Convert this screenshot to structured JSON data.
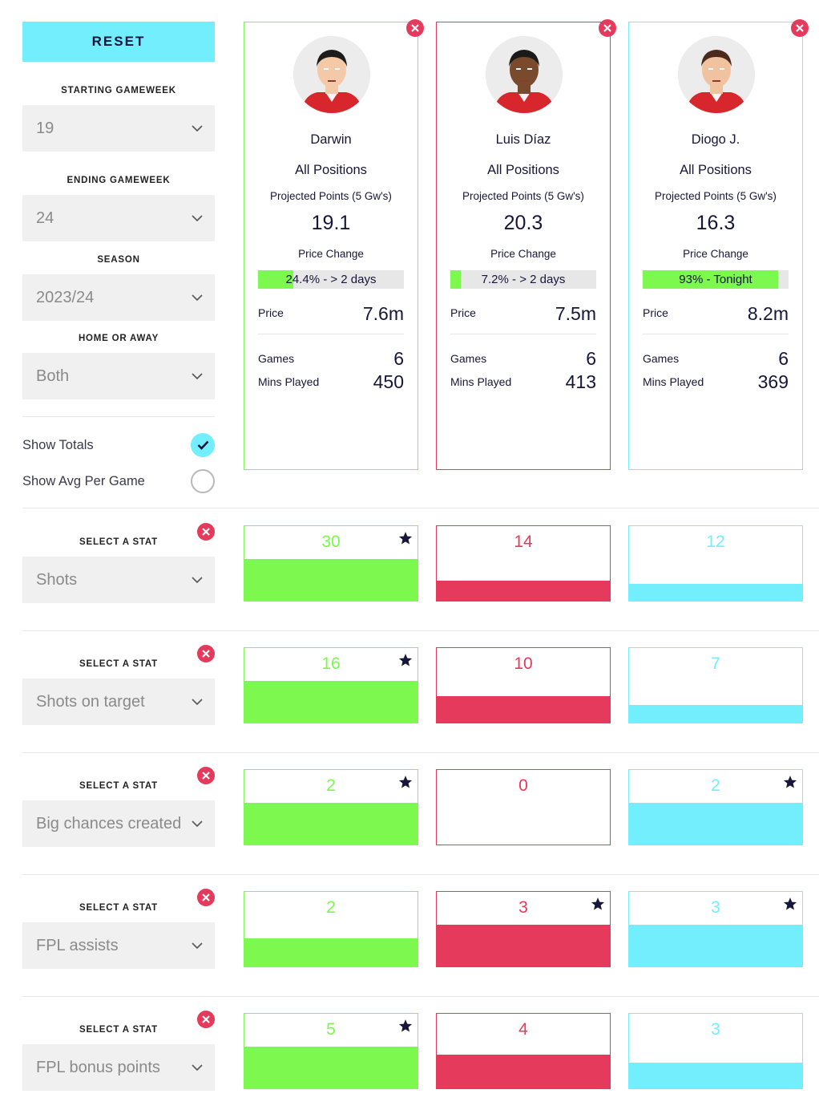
{
  "sidebar": {
    "reset_label": "RESET",
    "starting_gameweek": {
      "label": "STARTING GAMEWEEK",
      "value": "19"
    },
    "ending_gameweek": {
      "label": "ENDING GAMEWEEK",
      "value": "24"
    },
    "season": {
      "label": "SEASON",
      "value": "2023/24"
    },
    "home_or_away": {
      "label": "HOME OR AWAY",
      "value": "Both"
    },
    "show_totals": {
      "label": "Show Totals",
      "checked": true
    },
    "show_avg": {
      "label": "Show Avg Per Game",
      "checked": false
    }
  },
  "players": [
    {
      "name": "Darwin",
      "position": "All Positions",
      "projected_label": "Projected Points (5 Gw's)",
      "projected": "19.1",
      "price_change_label": "Price Change",
      "price_change_text": "24.4% - > 2 days",
      "price_change_fraction": 0.244,
      "price_label": "Price",
      "price": "7.6m",
      "games_label": "Games",
      "games": "6",
      "mins_label": "Mins Played",
      "mins": "450",
      "color": "#7cf84e",
      "skin": "#f3c9a8",
      "hair": "#1c1c1c"
    },
    {
      "name": "Luis Díaz",
      "position": "All Positions",
      "projected_label": "Projected Points (5 Gw's)",
      "projected": "20.3",
      "price_change_label": "Price Change",
      "price_change_text": "7.2% - > 2 days",
      "price_change_fraction": 0.072,
      "price_label": "Price",
      "price": "7.5m",
      "games_label": "Games",
      "games": "6",
      "mins_label": "Mins Played",
      "mins": "413",
      "color": "#e53a5c",
      "skin": "#7a4a2c",
      "hair": "#1a1a1a"
    },
    {
      "name": "Diogo J.",
      "position": "All Positions",
      "projected_label": "Projected Points (5 Gw's)",
      "projected": "16.3",
      "price_change_label": "Price Change",
      "price_change_text": "93% - Tonight",
      "price_change_fraction": 0.93,
      "price_label": "Price",
      "price": "8.2m",
      "games_label": "Games",
      "games": "6",
      "mins_label": "Mins Played",
      "mins": "369",
      "color": "#73eefc",
      "skin": "#f0c29f",
      "hair": "#4a2a1c"
    }
  ],
  "stats": [
    {
      "label": "SELECT A STAT",
      "stat": "Shots",
      "values": [
        "30",
        "14",
        "12"
      ],
      "fractions": [
        0.56,
        0.27,
        0.23
      ],
      "stars": [
        true,
        false,
        false
      ]
    },
    {
      "label": "SELECT A STAT",
      "stat": "Shots on target",
      "values": [
        "16",
        "10",
        "7"
      ],
      "fractions": [
        0.56,
        0.35,
        0.24
      ],
      "stars": [
        true,
        false,
        false
      ]
    },
    {
      "label": "SELECT A STAT",
      "stat": "Big chances created",
      "values": [
        "2",
        "0",
        "2"
      ],
      "fractions": [
        0.56,
        0.0,
        0.56
      ],
      "stars": [
        true,
        false,
        true
      ]
    },
    {
      "label": "SELECT A STAT",
      "stat": "FPL assists",
      "values": [
        "2",
        "3",
        "3"
      ],
      "fractions": [
        0.38,
        0.56,
        0.56
      ],
      "stars": [
        false,
        true,
        true
      ]
    },
    {
      "label": "SELECT A STAT",
      "stat": "FPL bonus points",
      "values": [
        "5",
        "4",
        "3"
      ],
      "fractions": [
        0.56,
        0.45,
        0.34
      ],
      "stars": [
        true,
        false,
        false
      ]
    }
  ],
  "icons": {
    "chevron": "chevron-down-icon",
    "close": "close-icon",
    "star": "star-icon",
    "check": "check-icon"
  }
}
